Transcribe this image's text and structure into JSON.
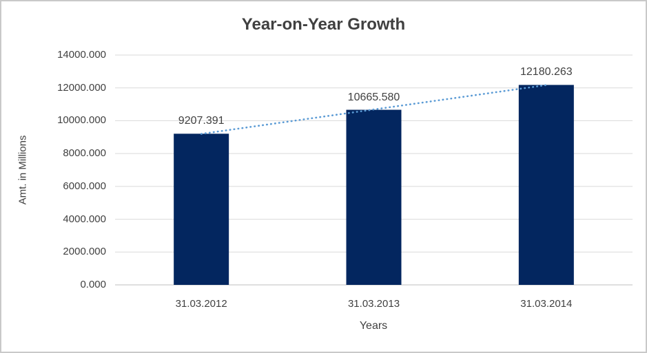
{
  "chart_data": {
    "type": "bar",
    "title": "Year-on-Year Growth",
    "categories": [
      "31.03.2012",
      "31.03.2013",
      "31.03.2014"
    ],
    "values": [
      9207.391,
      10665.58,
      12180.263
    ],
    "data_labels": [
      "9207.391",
      "10665.580",
      "12180.263"
    ],
    "xlabel": "Years",
    "ylabel": "Amt. in Millions",
    "ylim": [
      0,
      14000
    ],
    "ytick_step": 2000,
    "ytick_labels": [
      "0.000",
      "2000.000",
      "4000.000",
      "6000.000",
      "8000.000",
      "10000.000",
      "12000.000",
      "14000.000"
    ],
    "grid": true,
    "legend": "none",
    "trendline": {
      "type": "linear",
      "style": "dotted"
    },
    "colors": {
      "bar": "#03265F",
      "trendline": "#5B9BD5",
      "gridline": "#D9D9D9",
      "axis_line": "#BFBFBF",
      "text": "#404040",
      "title_text": "#404040",
      "border": "#C9C9C9"
    }
  }
}
